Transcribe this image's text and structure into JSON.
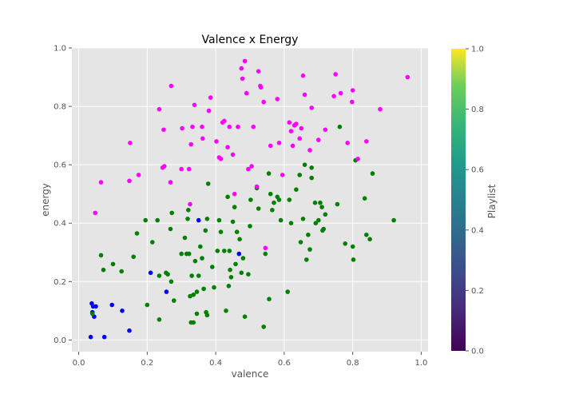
{
  "chart_data": {
    "type": "scatter",
    "title": "Valence x Energy",
    "xlabel": "valence",
    "ylabel": "energy",
    "xlim": [
      -0.02,
      1.02
    ],
    "ylim": [
      -0.04,
      1.0
    ],
    "xticks": [
      "0.0",
      "0.2",
      "0.4",
      "0.6",
      "0.8",
      "1.0"
    ],
    "yticks": [
      "0.0",
      "0.2",
      "0.4",
      "0.6",
      "0.8",
      "1.0"
    ],
    "grid": true,
    "colorbar": {
      "label": "Playlist",
      "range": [
        0.0,
        1.0
      ],
      "ticks": [
        "0.0",
        "0.2",
        "0.4",
        "0.6",
        "0.8",
        "1.0"
      ],
      "colormap": "viridis"
    },
    "point_colors": {
      "blue": "#0000ff",
      "green": "#008000",
      "magenta": "#ff00ff"
    },
    "series": [
      {
        "color": "blue",
        "points": [
          [
            0.035,
            0.01
          ],
          [
            0.038,
            0.125
          ],
          [
            0.04,
            0.095
          ],
          [
            0.042,
            0.115
          ],
          [
            0.045,
            0.08
          ],
          [
            0.05,
            0.115
          ],
          [
            0.075,
            0.01
          ],
          [
            0.097,
            0.12
          ],
          [
            0.127,
            0.1
          ],
          [
            0.148,
            0.032
          ],
          [
            0.21,
            0.23
          ],
          [
            0.256,
            0.165
          ],
          [
            0.35,
            0.41
          ],
          [
            0.468,
            0.295
          ]
        ]
      },
      {
        "color": "green",
        "points": [
          [
            0.04,
            0.09
          ],
          [
            0.065,
            0.29
          ],
          [
            0.072,
            0.24
          ],
          [
            0.1,
            0.26
          ],
          [
            0.125,
            0.235
          ],
          [
            0.16,
            0.285
          ],
          [
            0.17,
            0.365
          ],
          [
            0.195,
            0.41
          ],
          [
            0.2,
            0.12
          ],
          [
            0.215,
            0.335
          ],
          [
            0.23,
            0.41
          ],
          [
            0.235,
            0.07
          ],
          [
            0.235,
            0.22
          ],
          [
            0.255,
            0.23
          ],
          [
            0.26,
            0.225
          ],
          [
            0.268,
            0.38
          ],
          [
            0.27,
            0.2
          ],
          [
            0.272,
            0.435
          ],
          [
            0.278,
            0.135
          ],
          [
            0.3,
            0.295
          ],
          [
            0.31,
            0.35
          ],
          [
            0.315,
            0.295
          ],
          [
            0.318,
            0.415
          ],
          [
            0.32,
            0.445
          ],
          [
            0.322,
            0.295
          ],
          [
            0.325,
            0.15
          ],
          [
            0.328,
            0.06
          ],
          [
            0.33,
            0.22
          ],
          [
            0.335,
            0.06
          ],
          [
            0.335,
            0.155
          ],
          [
            0.34,
            0.27
          ],
          [
            0.345,
            0.165
          ],
          [
            0.345,
            0.09
          ],
          [
            0.35,
            0.22
          ],
          [
            0.355,
            0.32
          ],
          [
            0.36,
            0.28
          ],
          [
            0.365,
            0.175
          ],
          [
            0.37,
            0.375
          ],
          [
            0.372,
            0.095
          ],
          [
            0.375,
            0.085
          ],
          [
            0.375,
            0.415
          ],
          [
            0.378,
            0.535
          ],
          [
            0.39,
            0.25
          ],
          [
            0.395,
            0.18
          ],
          [
            0.405,
            0.305
          ],
          [
            0.41,
            0.41
          ],
          [
            0.415,
            0.37
          ],
          [
            0.425,
            0.305
          ],
          [
            0.43,
            0.1
          ],
          [
            0.435,
            0.49
          ],
          [
            0.438,
            0.185
          ],
          [
            0.44,
            0.305
          ],
          [
            0.442,
            0.24
          ],
          [
            0.445,
            0.215
          ],
          [
            0.45,
            0.405
          ],
          [
            0.455,
            0.455
          ],
          [
            0.458,
            0.26
          ],
          [
            0.462,
            0.37
          ],
          [
            0.47,
            0.345
          ],
          [
            0.475,
            0.23
          ],
          [
            0.48,
            0.28
          ],
          [
            0.485,
            0.08
          ],
          [
            0.495,
            0.225
          ],
          [
            0.5,
            0.39
          ],
          [
            0.502,
            0.48
          ],
          [
            0.52,
            0.52
          ],
          [
            0.525,
            0.45
          ],
          [
            0.54,
            0.045
          ],
          [
            0.545,
            0.295
          ],
          [
            0.555,
            0.57
          ],
          [
            0.556,
            0.14
          ],
          [
            0.56,
            0.5
          ],
          [
            0.565,
            0.445
          ],
          [
            0.57,
            0.47
          ],
          [
            0.58,
            0.49
          ],
          [
            0.585,
            0.48
          ],
          [
            0.59,
            0.41
          ],
          [
            0.61,
            0.165
          ],
          [
            0.615,
            0.48
          ],
          [
            0.62,
            0.4
          ],
          [
            0.635,
            0.515
          ],
          [
            0.645,
            0.565
          ],
          [
            0.648,
            0.335
          ],
          [
            0.655,
            0.415
          ],
          [
            0.66,
            0.6
          ],
          [
            0.665,
            0.275
          ],
          [
            0.67,
            0.36
          ],
          [
            0.675,
            0.31
          ],
          [
            0.68,
            0.59
          ],
          [
            0.68,
            0.555
          ],
          [
            0.69,
            0.47
          ],
          [
            0.692,
            0.4
          ],
          [
            0.7,
            0.41
          ],
          [
            0.705,
            0.47
          ],
          [
            0.71,
            0.455
          ],
          [
            0.712,
            0.375
          ],
          [
            0.715,
            0.38
          ],
          [
            0.72,
            0.43
          ],
          [
            0.755,
            0.465
          ],
          [
            0.762,
            0.73
          ],
          [
            0.778,
            0.33
          ],
          [
            0.8,
            0.32
          ],
          [
            0.802,
            0.275
          ],
          [
            0.808,
            0.615
          ],
          [
            0.835,
            0.485
          ],
          [
            0.84,
            0.36
          ],
          [
            0.85,
            0.345
          ],
          [
            0.858,
            0.57
          ],
          [
            0.92,
            0.41
          ]
        ]
      },
      {
        "color": "magenta",
        "points": [
          [
            0.048,
            0.435
          ],
          [
            0.065,
            0.54
          ],
          [
            0.148,
            0.545
          ],
          [
            0.15,
            0.675
          ],
          [
            0.175,
            0.565
          ],
          [
            0.235,
            0.79
          ],
          [
            0.245,
            0.59
          ],
          [
            0.248,
            0.72
          ],
          [
            0.25,
            0.595
          ],
          [
            0.268,
            0.54
          ],
          [
            0.27,
            0.87
          ],
          [
            0.3,
            0.585
          ],
          [
            0.302,
            0.725
          ],
          [
            0.322,
            0.585
          ],
          [
            0.325,
            0.465
          ],
          [
            0.328,
            0.67
          ],
          [
            0.332,
            0.73
          ],
          [
            0.338,
            0.805
          ],
          [
            0.36,
            0.73
          ],
          [
            0.362,
            0.69
          ],
          [
            0.38,
            0.785
          ],
          [
            0.385,
            0.83
          ],
          [
            0.402,
            0.68
          ],
          [
            0.41,
            0.625
          ],
          [
            0.415,
            0.62
          ],
          [
            0.42,
            0.745
          ],
          [
            0.425,
            0.75
          ],
          [
            0.435,
            0.66
          ],
          [
            0.44,
            0.73
          ],
          [
            0.45,
            0.635
          ],
          [
            0.455,
            0.5
          ],
          [
            0.465,
            0.73
          ],
          [
            0.475,
            0.93
          ],
          [
            0.478,
            0.895
          ],
          [
            0.485,
            0.955
          ],
          [
            0.49,
            0.845
          ],
          [
            0.495,
            0.585
          ],
          [
            0.505,
            0.595
          ],
          [
            0.51,
            0.73
          ],
          [
            0.52,
            0.525
          ],
          [
            0.525,
            0.92
          ],
          [
            0.53,
            0.87
          ],
          [
            0.532,
            0.865
          ],
          [
            0.54,
            0.815
          ],
          [
            0.545,
            0.315
          ],
          [
            0.56,
            0.665
          ],
          [
            0.58,
            0.825
          ],
          [
            0.585,
            0.675
          ],
          [
            0.595,
            0.565
          ],
          [
            0.615,
            0.745
          ],
          [
            0.62,
            0.715
          ],
          [
            0.625,
            0.665
          ],
          [
            0.63,
            0.735
          ],
          [
            0.635,
            0.74
          ],
          [
            0.645,
            0.69
          ],
          [
            0.65,
            0.725
          ],
          [
            0.655,
            0.905
          ],
          [
            0.66,
            0.84
          ],
          [
            0.675,
            0.65
          ],
          [
            0.68,
            0.795
          ],
          [
            0.7,
            0.685
          ],
          [
            0.72,
            0.72
          ],
          [
            0.745,
            0.835
          ],
          [
            0.75,
            0.91
          ],
          [
            0.765,
            0.845
          ],
          [
            0.785,
            0.675
          ],
          [
            0.798,
            0.815
          ],
          [
            0.8,
            0.855
          ],
          [
            0.815,
            0.62
          ],
          [
            0.84,
            0.68
          ],
          [
            0.88,
            0.79
          ],
          [
            0.96,
            0.9
          ]
        ]
      }
    ]
  }
}
